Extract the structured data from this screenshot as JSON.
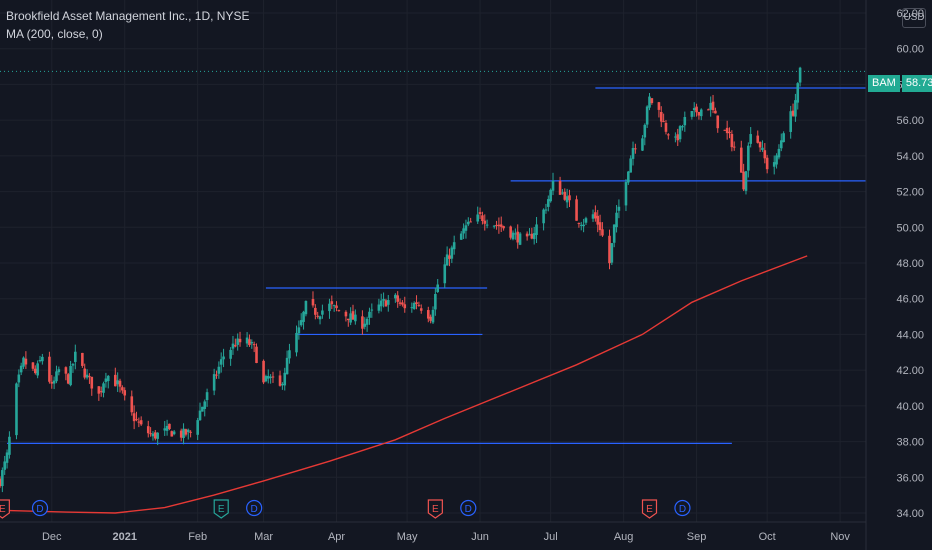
{
  "header": {
    "title": "Brookfield Asset Management Inc., 1D, NYSE",
    "indicator": "MA (200, close, 0)"
  },
  "currency": "USD",
  "last_price": {
    "symbol": "BAM",
    "value": "58.73"
  },
  "colors": {
    "background": "#131722",
    "up": "#26a69a",
    "down": "#ef5350",
    "ma": "#e53935",
    "levels": "#2962ff",
    "axis_text": "#b2b5be",
    "earnings": "#ef5350",
    "earnings_up": "#26a69a",
    "dividend": "#2962ff"
  },
  "chart_data": {
    "type": "candlestick",
    "y_axis": {
      "min": 34,
      "max": 62,
      "ticks": [
        34,
        36,
        38,
        40,
        42,
        44,
        46,
        48,
        50,
        52,
        54,
        56,
        58,
        60,
        62
      ],
      "side": "right",
      "format": "2dp"
    },
    "x_axis": {
      "labels": [
        {
          "label": "Dec",
          "date": "2020-12-01"
        },
        {
          "label": "2021",
          "date": "2021-01-01"
        },
        {
          "label": "Feb",
          "date": "2021-02-01"
        },
        {
          "label": "Mar",
          "date": "2021-03-01"
        },
        {
          "label": "Apr",
          "date": "2021-04-01"
        },
        {
          "label": "May",
          "date": "2021-05-01"
        },
        {
          "label": "Jun",
          "date": "2021-06-01"
        },
        {
          "label": "Jul",
          "date": "2021-07-01"
        },
        {
          "label": "Aug",
          "date": "2021-08-01"
        },
        {
          "label": "Sep",
          "date": "2021-09-01"
        },
        {
          "label": "Oct",
          "date": "2021-10-01"
        },
        {
          "label": "Nov",
          "date": "2021-11-01"
        }
      ],
      "range": [
        "2020-11-09",
        "2021-11-12"
      ]
    },
    "price_path": [
      [
        "2020-11-09",
        35.8
      ],
      [
        "2020-11-12",
        37.2
      ],
      [
        "2020-11-16",
        41.0
      ],
      [
        "2020-11-19",
        42.5
      ],
      [
        "2020-11-24",
        41.8
      ],
      [
        "2020-11-27",
        42.8
      ],
      [
        "2020-12-01",
        41.0
      ],
      [
        "2020-12-04",
        42.0
      ],
      [
        "2020-12-08",
        41.5
      ],
      [
        "2020-12-11",
        42.8
      ],
      [
        "2020-12-16",
        41.6
      ],
      [
        "2020-12-21",
        40.6
      ],
      [
        "2020-12-24",
        41.8
      ],
      [
        "2020-12-29",
        41.2
      ],
      [
        "2021-01-04",
        39.5
      ],
      [
        "2021-01-08",
        38.8
      ],
      [
        "2021-01-13",
        38.3
      ],
      [
        "2021-01-19",
        38.6
      ],
      [
        "2021-01-25",
        38.4
      ],
      [
        "2021-01-29",
        38.5
      ],
      [
        "2021-02-03",
        40.0
      ],
      [
        "2021-02-08",
        41.5
      ],
      [
        "2021-02-12",
        42.8
      ],
      [
        "2021-02-17",
        43.5
      ],
      [
        "2021-02-22",
        43.6
      ],
      [
        "2021-02-25",
        43.2
      ],
      [
        "2021-03-01",
        41.2
      ],
      [
        "2021-03-03",
        41.6
      ],
      [
        "2021-03-08",
        41.0
      ],
      [
        "2021-03-12",
        43.0
      ],
      [
        "2021-03-16",
        44.2
      ],
      [
        "2021-03-19",
        45.6
      ],
      [
        "2021-03-24",
        45.2
      ],
      [
        "2021-03-29",
        45.6
      ],
      [
        "2021-04-05",
        45.1
      ],
      [
        "2021-04-12",
        44.6
      ],
      [
        "2021-04-16",
        45.2
      ],
      [
        "2021-04-21",
        45.8
      ],
      [
        "2021-04-26",
        46.0
      ],
      [
        "2021-04-30",
        45.4
      ],
      [
        "2021-05-05",
        45.8
      ],
      [
        "2021-05-11",
        45.0
      ],
      [
        "2021-05-14",
        46.8
      ],
      [
        "2021-05-18",
        48.2
      ],
      [
        "2021-05-21",
        49.0
      ],
      [
        "2021-05-26",
        50.0
      ],
      [
        "2021-06-01",
        50.6
      ],
      [
        "2021-06-07",
        50.2
      ],
      [
        "2021-06-11",
        50.0
      ],
      [
        "2021-06-16",
        49.5
      ],
      [
        "2021-06-21",
        49.2
      ],
      [
        "2021-06-24",
        49.8
      ],
      [
        "2021-06-29",
        51.2
      ],
      [
        "2021-07-02",
        52.4
      ],
      [
        "2021-07-07",
        51.8
      ],
      [
        "2021-07-12",
        50.5
      ],
      [
        "2021-07-15",
        50.3
      ],
      [
        "2021-07-19",
        50.7
      ],
      [
        "2021-07-22",
        50.0
      ],
      [
        "2021-07-26",
        48.0
      ],
      [
        "2021-07-28",
        50.0
      ],
      [
        "2021-08-02",
        52.8
      ],
      [
        "2021-08-05",
        54.5
      ],
      [
        "2021-08-09",
        55.2
      ],
      [
        "2021-08-12",
        57.2
      ],
      [
        "2021-08-16",
        56.5
      ],
      [
        "2021-08-19",
        55.5
      ],
      [
        "2021-08-23",
        54.8
      ],
      [
        "2021-08-27",
        56.0
      ],
      [
        "2021-09-01",
        56.5
      ],
      [
        "2021-09-07",
        56.8
      ],
      [
        "2021-09-10",
        55.8
      ],
      [
        "2021-09-15",
        55.0
      ],
      [
        "2021-09-17",
        54.5
      ],
      [
        "2021-09-21",
        52.4
      ],
      [
        "2021-09-24",
        55.5
      ],
      [
        "2021-09-28",
        54.6
      ],
      [
        "2021-10-01",
        53.4
      ],
      [
        "2021-10-05",
        53.8
      ],
      [
        "2021-10-08",
        55.5
      ],
      [
        "2021-10-12",
        56.5
      ],
      [
        "2021-10-14",
        57.8
      ],
      [
        "2021-10-15",
        58.73
      ]
    ],
    "moving_average": {
      "name": "MA (200, close, 0)",
      "points": [
        [
          "2020-11-09",
          34.15
        ],
        [
          "2020-12-07",
          34.05
        ],
        [
          "2020-12-28",
          34.0
        ],
        [
          "2021-01-18",
          34.3
        ],
        [
          "2021-02-08",
          35.0
        ],
        [
          "2021-03-01",
          35.8
        ],
        [
          "2021-03-29",
          36.9
        ],
        [
          "2021-04-26",
          38.1
        ],
        [
          "2021-05-17",
          39.3
        ],
        [
          "2021-06-14",
          40.8
        ],
        [
          "2021-07-12",
          42.3
        ],
        [
          "2021-08-09",
          44.0
        ],
        [
          "2021-08-30",
          45.8
        ],
        [
          "2021-09-20",
          47.0
        ],
        [
          "2021-10-18",
          48.4
        ]
      ]
    },
    "levels": [
      {
        "value": 37.9,
        "from": "2020-11-12",
        "to": "2021-09-16"
      },
      {
        "value": 44.0,
        "from": "2021-03-15",
        "to": "2021-06-02"
      },
      {
        "value": 46.6,
        "from": "2021-03-02",
        "to": "2021-06-04"
      },
      {
        "value": 52.6,
        "from": "2021-06-14",
        "to": "2021-11-12"
      },
      {
        "value": 57.8,
        "from": "2021-07-20",
        "to": "2021-11-12"
      }
    ],
    "last_price_line": 58.73,
    "events": [
      {
        "kind": "E",
        "date": "2020-11-10",
        "color": "#ef5350"
      },
      {
        "kind": "D",
        "date": "2020-11-26",
        "color": "#2962ff"
      },
      {
        "kind": "E",
        "date": "2021-02-11",
        "color": "#26a69a"
      },
      {
        "kind": "D",
        "date": "2021-02-25",
        "color": "#2962ff"
      },
      {
        "kind": "E",
        "date": "2021-05-13",
        "color": "#ef5350"
      },
      {
        "kind": "D",
        "date": "2021-05-27",
        "color": "#2962ff"
      },
      {
        "kind": "E",
        "date": "2021-08-12",
        "color": "#ef5350"
      },
      {
        "kind": "D",
        "date": "2021-08-26",
        "color": "#2962ff"
      }
    ]
  }
}
